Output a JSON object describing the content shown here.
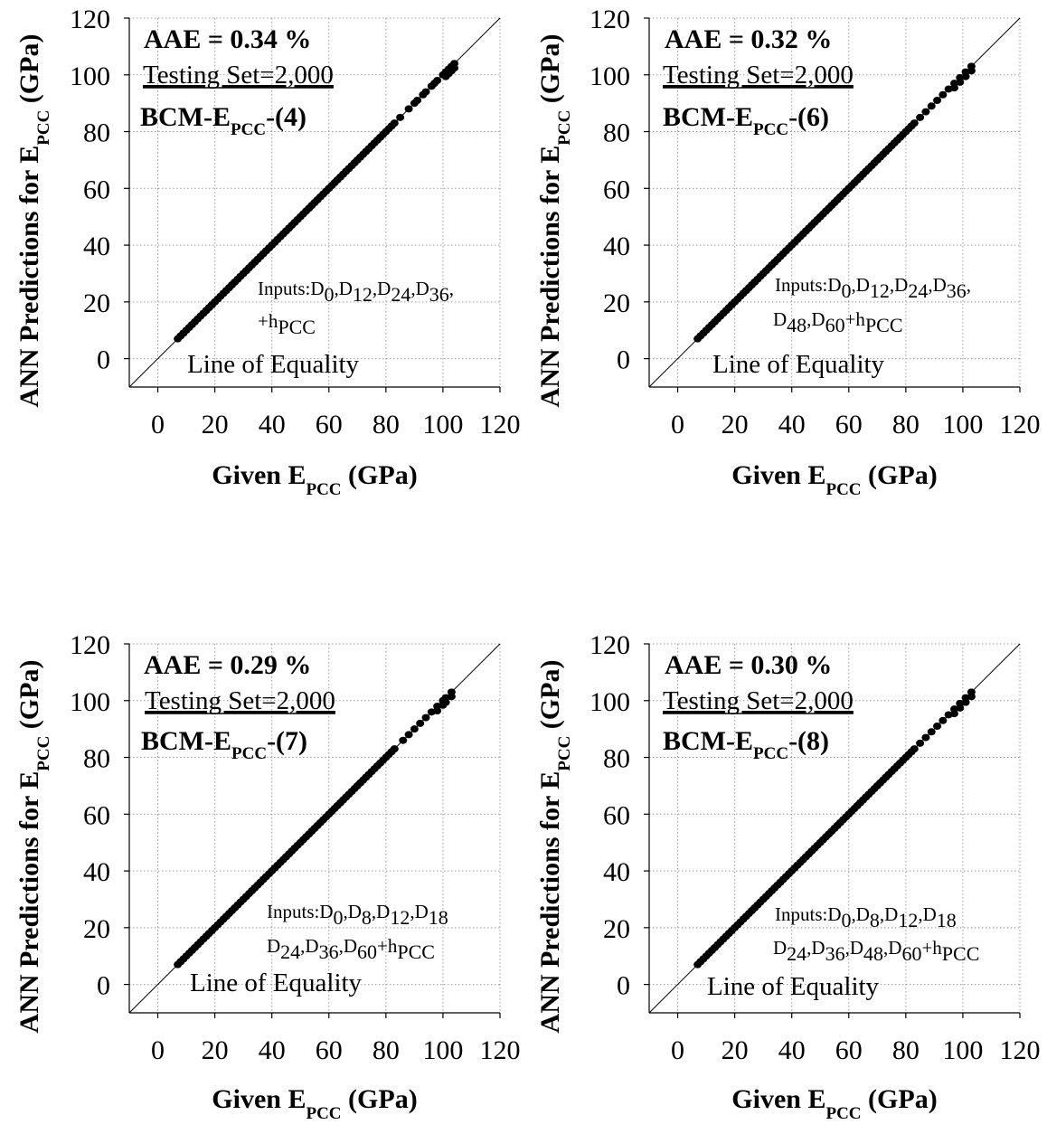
{
  "chart_data": [
    {
      "type": "scatter",
      "xlim": [
        -10,
        120
      ],
      "ylim": [
        -10,
        120
      ],
      "xticks": [
        0,
        20,
        40,
        60,
        80,
        100,
        120
      ],
      "yticks": [
        0,
        20,
        40,
        60,
        80,
        100,
        120
      ],
      "grid": true,
      "xlabel": {
        "main": "Given E",
        "sub": "PCC",
        "unit": " (GPa)"
      },
      "ylabel": {
        "main": "ANN Predictions for E",
        "sub": "PCC",
        "unit": " (GPa)"
      },
      "aae": {
        "label": "AAE = ",
        "value": "0.34",
        "unit": " %"
      },
      "testing_set": "Testing Set=2,000",
      "model": {
        "prefix": "BCM-E",
        "sub": "PCC",
        "suffix": "-(4)"
      },
      "inputs": {
        "line1": [
          {
            "t": "Inputs:D",
            "s": "0"
          },
          {
            "t": ",D",
            "s": "12"
          },
          {
            "t": ",D",
            "s": "24"
          },
          {
            "t": ",D",
            "s": "36"
          },
          {
            "t": ",",
            "s": ""
          }
        ],
        "line2": [
          {
            "t": "+h",
            "s": "PCC"
          }
        ]
      },
      "equality_label": "Line of Equality",
      "points": {
        "start": 7,
        "end": 83,
        "step": 1,
        "extra": [
          85,
          88,
          90,
          91,
          93,
          94,
          96,
          97,
          98,
          100,
          101,
          102,
          103,
          104
        ]
      }
    },
    {
      "type": "scatter",
      "xlim": [
        -10,
        120
      ],
      "ylim": [
        -10,
        120
      ],
      "xticks": [
        0,
        20,
        40,
        60,
        80,
        100,
        120
      ],
      "yticks": [
        0,
        20,
        40,
        60,
        80,
        100,
        120
      ],
      "grid": true,
      "xlabel": {
        "main": "Given E",
        "sub": "PCC",
        "unit": " (GPa)"
      },
      "ylabel": {
        "main": "ANN Predictions for E",
        "sub": "PCC",
        "unit": " (GPa)"
      },
      "aae": {
        "label": "AAE = ",
        "value": "0.32",
        "unit": " %"
      },
      "testing_set": "Testing Set=2,000",
      "model": {
        "prefix": "BCM-E",
        "sub": "PCC",
        "suffix": "-(6)"
      },
      "inputs": {
        "line1": [
          {
            "t": "Inputs:D",
            "s": "0"
          },
          {
            "t": ",D",
            "s": "12"
          },
          {
            "t": ",D",
            "s": "24"
          },
          {
            "t": ",D",
            "s": "36"
          },
          {
            "t": ",",
            "s": ""
          }
        ],
        "line2": [
          {
            "t": "D",
            "s": "48"
          },
          {
            "t": ",D",
            "s": "60"
          },
          {
            "t": "+h",
            "s": "PCC"
          }
        ]
      },
      "equality_label": "Line of Equality",
      "points": {
        "start": 7,
        "end": 83,
        "step": 1,
        "extra": [
          85,
          87,
          89,
          91,
          93,
          95,
          97,
          99,
          101,
          103
        ]
      }
    },
    {
      "type": "scatter",
      "xlim": [
        -10,
        120
      ],
      "ylim": [
        -10,
        120
      ],
      "xticks": [
        0,
        20,
        40,
        60,
        80,
        100,
        120
      ],
      "yticks": [
        0,
        20,
        40,
        60,
        80,
        100,
        120
      ],
      "grid": true,
      "xlabel": {
        "main": "Given E",
        "sub": "PCC",
        "unit": " (GPa)"
      },
      "ylabel": {
        "main": "ANN Predictions for E",
        "sub": "PCC",
        "unit": " (GPa)"
      },
      "aae": {
        "label": "AAE = ",
        "value": "0.29",
        "unit": " %"
      },
      "testing_set": "Testing Set=2,000",
      "model": {
        "prefix": "BCM-E",
        "sub": "PCC",
        "suffix": "-(7)"
      },
      "inputs": {
        "line1": [
          {
            "t": "Inputs:D",
            "s": "0"
          },
          {
            "t": ",D",
            "s": "8"
          },
          {
            "t": ",D",
            "s": "12"
          },
          {
            "t": ",D",
            "s": "18"
          }
        ],
        "line2": [
          {
            "t": "D",
            "s": "24"
          },
          {
            "t": ",D",
            "s": "36"
          },
          {
            "t": ",D",
            "s": "60"
          },
          {
            "t": "+h",
            "s": "PCC"
          }
        ]
      },
      "equality_label": "Line of Equality",
      "points": {
        "start": 7,
        "end": 83,
        "step": 1,
        "extra": [
          86,
          88,
          90,
          92,
          94,
          96,
          98,
          100,
          101,
          103
        ]
      }
    },
    {
      "type": "scatter",
      "xlim": [
        -10,
        120
      ],
      "ylim": [
        -10,
        120
      ],
      "xticks": [
        0,
        20,
        40,
        60,
        80,
        100,
        120
      ],
      "yticks": [
        0,
        20,
        40,
        60,
        80,
        100,
        120
      ],
      "grid": true,
      "xlabel": {
        "main": "Given  E",
        "sub": "PCC",
        "unit": " (GPa)"
      },
      "ylabel": {
        "main": "ANN Predictions for E",
        "sub": "PCC",
        "unit": " (GPa)"
      },
      "aae": {
        "label": "AAE = ",
        "value": "0.30",
        "unit": " %"
      },
      "testing_set": "Testing Set=2,000",
      "model": {
        "prefix": "BCM-E",
        "sub": "PCC",
        "suffix": "-(8)"
      },
      "inputs": {
        "line1": [
          {
            "t": "Inputs:D",
            "s": "0"
          },
          {
            "t": ",D",
            "s": "8"
          },
          {
            "t": ",D",
            "s": "12"
          },
          {
            "t": ",D",
            "s": "18"
          }
        ],
        "line2": [
          {
            "t": "D",
            "s": "24"
          },
          {
            "t": ",D",
            "s": "36"
          },
          {
            "t": ",D",
            "s": "48"
          },
          {
            "t": ",D",
            "s": "60"
          },
          {
            "t": "+h",
            "s": "PCC"
          }
        ]
      },
      "equality_label": "Line of Equality",
      "points": {
        "start": 7,
        "end": 83,
        "step": 1,
        "extra": [
          85,
          87,
          89,
          91,
          93,
          95,
          97,
          99,
          101,
          103
        ]
      }
    }
  ]
}
